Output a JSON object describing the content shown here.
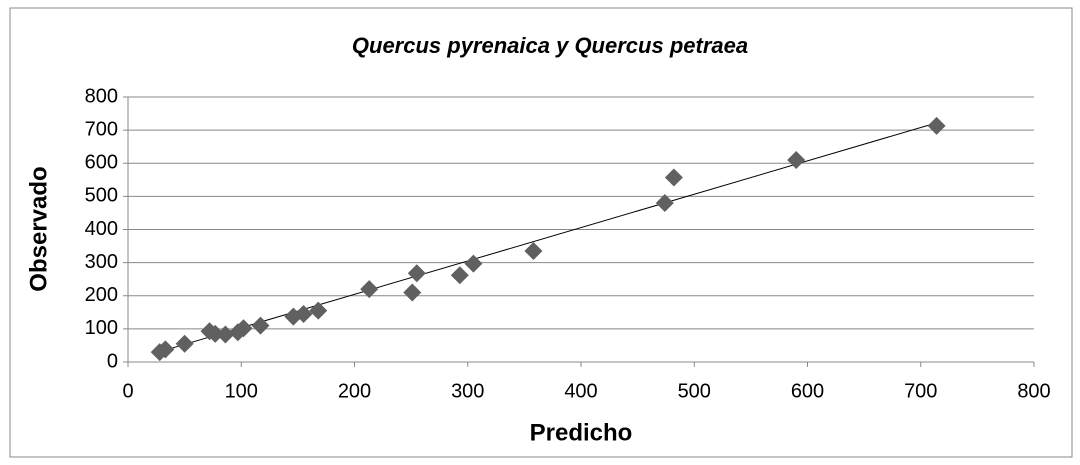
{
  "chart_data": {
    "type": "scatter",
    "title": "Quercus pyrenaica y Quercus petraea",
    "xlabel": "Predicho",
    "ylabel": "Observado",
    "series": [
      {
        "color": "#606060",
        "x": [
          28,
          33,
          50,
          72,
          77,
          86,
          97,
          102,
          117,
          146,
          155,
          168,
          213,
          251,
          255,
          293,
          305,
          358,
          474,
          482,
          590,
          714
        ],
        "values": [
          30,
          38,
          55,
          93,
          85,
          83,
          90,
          102,
          110,
          137,
          145,
          155,
          220,
          210,
          268,
          262,
          297,
          335,
          480,
          557,
          610,
          713
        ]
      }
    ],
    "trendline": {
      "color": "#000000",
      "x": [
        27,
        714
      ],
      "values": [
        30,
        722
      ]
    },
    "xlim": [
      0,
      800
    ],
    "xticks": [
      0,
      100,
      200,
      300,
      400,
      500,
      600,
      700,
      800
    ],
    "ylim": [
      0,
      800
    ],
    "yticks": [
      0,
      100,
      200,
      300,
      400,
      500,
      600,
      700,
      800
    ],
    "grid": true
  }
}
